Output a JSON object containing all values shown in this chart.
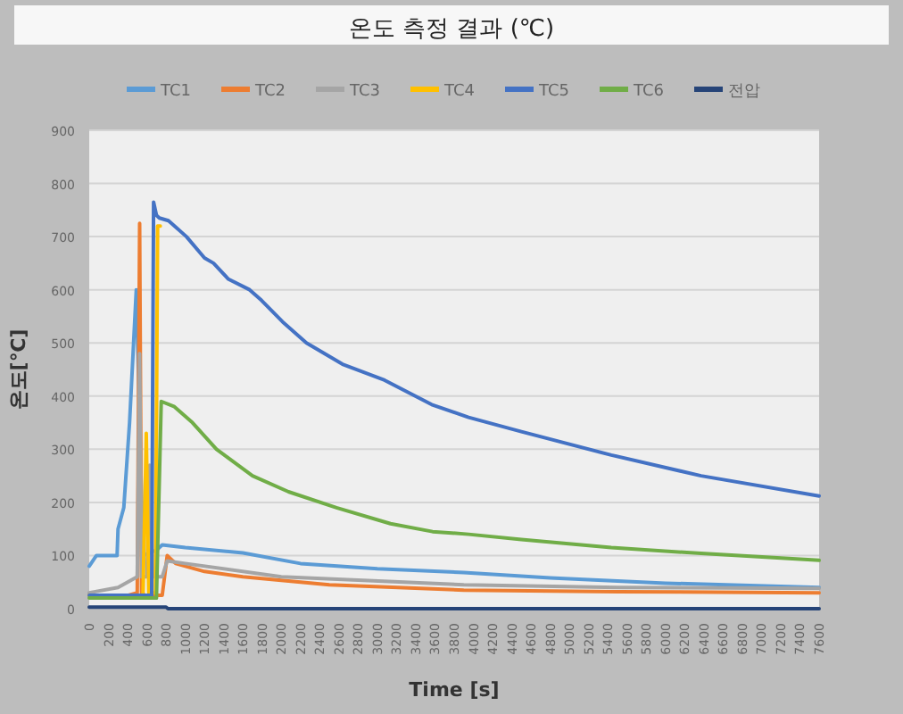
{
  "chart_data": {
    "type": "line",
    "title": "온도 측정 결과 (℃)",
    "xlabel": "Time [s]",
    "ylabel": "온도[℃]",
    "xlim": [
      0,
      7600
    ],
    "ylim": [
      0,
      900
    ],
    "xticks": [
      0,
      200,
      400,
      600,
      800,
      1000,
      1200,
      1400,
      1600,
      1800,
      2000,
      2200,
      2400,
      2600,
      2800,
      3000,
      3200,
      3400,
      3600,
      3800,
      4000,
      4200,
      4400,
      4600,
      4800,
      5000,
      5200,
      5400,
      5600,
      5800,
      6000,
      6200,
      6400,
      6600,
      6800,
      7000,
      7200,
      7400,
      7600
    ],
    "yticks": [
      0,
      100,
      200,
      300,
      400,
      500,
      600,
      700,
      800,
      900
    ],
    "grid": "y",
    "legend": "top",
    "marker": "none",
    "line_style": "solid",
    "series": [
      {
        "name": "TC1",
        "color": "#5b9bd5",
        "x": [
          0,
          75,
          290,
          300,
          360,
          420,
          490,
          560,
          700,
          760,
          1000,
          1600,
          2200,
          3000,
          3900,
          4800,
          6000,
          7600
        ],
        "values": [
          80,
          100,
          100,
          150,
          190,
          350,
          600,
          100,
          110,
          120,
          115,
          105,
          85,
          75,
          68,
          58,
          48,
          40
        ]
      },
      {
        "name": "TC2",
        "color": "#ed7d31",
        "x": [
          0,
          400,
          500,
          525,
          545,
          580,
          760,
          812,
          900,
          1200,
          1600,
          2500,
          3900,
          5500,
          7600
        ],
        "values": [
          25,
          25,
          30,
          725,
          30,
          25,
          25,
          100,
          85,
          70,
          60,
          45,
          35,
          32,
          30
        ]
      },
      {
        "name": "TC3",
        "color": "#a5a5a5",
        "x": [
          0,
          300,
          500,
          525,
          545,
          600,
          630,
          660,
          760,
          812,
          1000,
          2000,
          3900,
          5500,
          7600
        ],
        "values": [
          30,
          40,
          60,
          480,
          60,
          60,
          270,
          60,
          60,
          90,
          85,
          60,
          45,
          40,
          38
        ]
      },
      {
        "name": "TC4",
        "color": "#ffc000",
        "x": [
          0,
          560,
          594,
          620,
          690,
          712,
          740
        ],
        "values": [
          25,
          25,
          330,
          30,
          30,
          720,
          720
        ]
      },
      {
        "name": "TC5",
        "color": "#4472c4",
        "x": [
          0,
          650,
          670,
          700,
          730,
          825,
          1012,
          1200,
          1294,
          1450,
          1670,
          1794,
          2012,
          2262,
          2637,
          3075,
          3566,
          3950,
          4500,
          5436,
          6371,
          7600
        ],
        "values": [
          25,
          25,
          765,
          740,
          735,
          730,
          700,
          660,
          650,
          620,
          600,
          580,
          540,
          500,
          460,
          430,
          384,
          360,
          333,
          289,
          250,
          212
        ]
      },
      {
        "name": "TC6",
        "color": "#70ad47",
        "x": [
          0,
          700,
          750,
          887,
          1075,
          1325,
          1700,
          2075,
          2575,
          3137,
          3575,
          3950,
          4500,
          5436,
          6371,
          7600
        ],
        "values": [
          20,
          20,
          390,
          380,
          350,
          300,
          250,
          220,
          190,
          160,
          145,
          140,
          130,
          115,
          104,
          91
        ]
      },
      {
        "name": "전압",
        "color": "#264478",
        "x": [
          0,
          800,
          820,
          7600
        ],
        "values": [
          3,
          3,
          0,
          0
        ]
      }
    ]
  }
}
